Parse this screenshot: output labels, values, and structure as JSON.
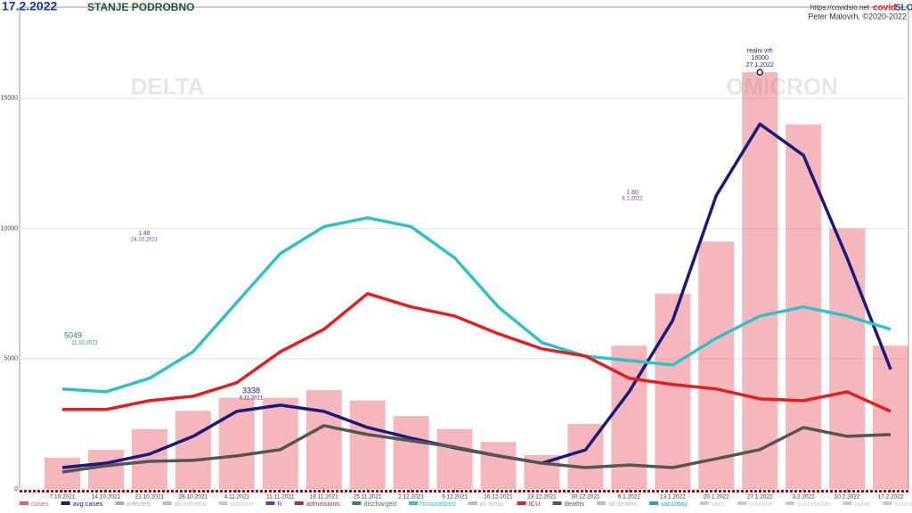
{
  "chart_data": {
    "type": "line",
    "title": "17.2.2022",
    "subtitle": "STANJE PODROBNO",
    "source_url": "https://covidslo.net",
    "brand": [
      "covid",
      "SLO"
    ],
    "author": "Peter Malovrh, ©2020-2022",
    "phases": [
      "DELTA",
      "OMICRON"
    ],
    "peak": {
      "label": "realni vrh",
      "value": 16000,
      "date": "27.1.2022"
    },
    "annotations": [
      {
        "text": [
          "5049",
          "11.10.2021"
        ]
      },
      {
        "text": [
          "3338",
          "6.11.2021"
        ]
      },
      {
        "text": [
          "1.80",
          "6.1.2022"
        ]
      },
      {
        "text": [
          "1.48",
          "24.10.2021"
        ]
      }
    ],
    "categories": [
      "7.10.2021",
      "14.10.2021",
      "21.10.2021",
      "28.10.2021",
      "4.11.2021",
      "11.11.2021",
      "18.11.2021",
      "25.11.2021",
      "2.12.2021",
      "9.12.2021",
      "16.12.2021",
      "23.12.2021",
      "30.12.2021",
      "6.1.2022",
      "13.1.2022",
      "20.1.2022",
      "27.1.2022",
      "3.2.2022",
      "10.2.2022",
      "17.2.2022"
    ],
    "ylim": [
      0,
      18500
    ],
    "yticks": [
      0,
      5000,
      10000,
      15000
    ],
    "grid": true,
    "series": [
      {
        "name": "cases",
        "color": "#e8606a",
        "style": "bar",
        "values": [
          1200,
          1500,
          2300,
          3000,
          3500,
          3500,
          3800,
          3400,
          2800,
          2300,
          1800,
          1300,
          2500,
          5500,
          7500,
          9500,
          16000,
          14000,
          10000,
          5500
        ]
      },
      {
        "name": "avg.cases",
        "color": "#1a1a7a",
        "style": "line",
        "values": [
          820,
          990,
          1340,
          2020,
          2980,
          3220,
          2980,
          2360,
          1950,
          1580,
          1270,
          990,
          1500,
          3730,
          6470,
          11270,
          14010,
          12810,
          8870,
          4590
        ]
      },
      {
        "name": "infected",
        "color": "#aaaaaa"
      },
      {
        "name": "all infected",
        "color": "#bbbbbb"
      },
      {
        "name": "odpiske",
        "color": "#c8c8c8"
      },
      {
        "name": "R",
        "color": "#7a3a9a"
      },
      {
        "name": "admissions",
        "color": "#b03030"
      },
      {
        "name": "discharged",
        "color": "#3a8a3a"
      },
      {
        "name": "hospitalized",
        "color": "#30c0c8",
        "style": "line",
        "values": [
          3840,
          3730,
          4250,
          5270,
          7160,
          9040,
          10070,
          10410,
          10070,
          8870,
          6990,
          5620,
          5100,
          4930,
          4760,
          5790,
          6640,
          6990,
          6640,
          6130
        ]
      },
      {
        "name": "all hosp.",
        "color": "#bbbbbb"
      },
      {
        "name": "ICU",
        "color": "#e02020",
        "style": "line",
        "values": [
          3050,
          3050,
          3390,
          3560,
          4080,
          5270,
          6130,
          7500,
          6990,
          6640,
          5960,
          5380,
          5100,
          4250,
          4010,
          3840,
          3460,
          3390,
          3730,
          2980
        ]
      },
      {
        "name": "deaths",
        "color": "#555555",
        "style": "line",
        "values": [
          650,
          890,
          1060,
          1100,
          1270,
          1510,
          2430,
          2090,
          1850,
          1610,
          1270,
          990,
          820,
          920,
          820,
          1160,
          1510,
          2360,
          2020,
          2090
        ]
      },
      {
        "name": "all deaths",
        "color": "#bbbbbb"
      },
      {
        "name": "vacc/day",
        "color": "#30a0a0"
      },
      {
        "name": "vacc",
        "color": "#c8c8c8"
      },
      {
        "name": "immune",
        "color": "#c8c8c8"
      },
      {
        "name": "susceptible",
        "color": "#c8c8c8"
      },
      {
        "name": "naive",
        "color": "#c8c8c8"
      },
      {
        "name": "nonnaive",
        "color": "#c8c8c8"
      },
      {
        "name": "ICU in",
        "color": "#1a1a7a"
      },
      {
        "name": "ICU out",
        "color": "#bbbbbb"
      },
      {
        "name": "all ICU",
        "color": "#bbbbbb"
      }
    ]
  }
}
